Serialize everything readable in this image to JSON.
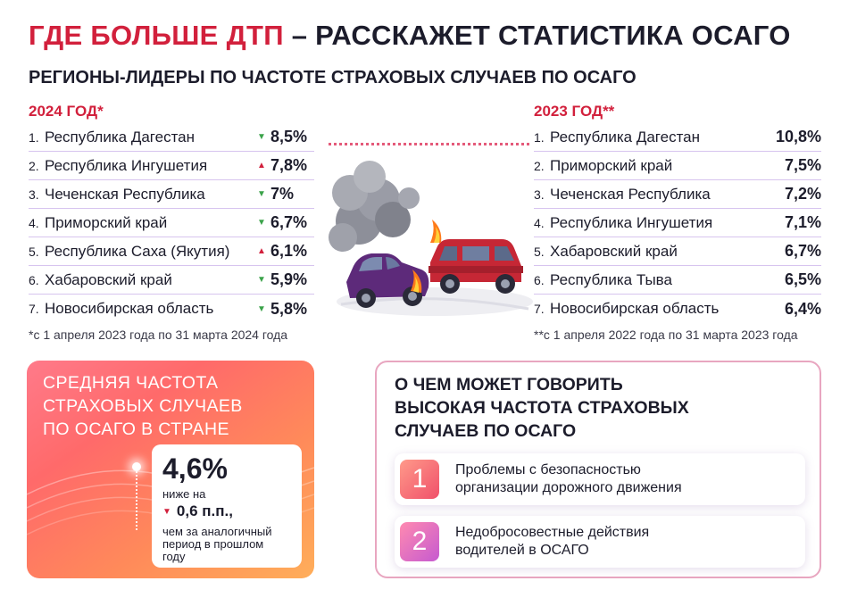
{
  "header": {
    "title_red": "ГДЕ БОЛЬШЕ ДТП",
    "title_dark": " – РАССКАЖЕТ СТАТИСТИКА ОСАГО",
    "subtitle": "РЕГИОНЫ-ЛИДЕРЫ ПО ЧАСТОТЕ СТРАХОВЫХ СЛУЧАЕВ ПО ОСАГО"
  },
  "left": {
    "heading": "2024 ГОД*",
    "rows": [
      {
        "num": "1.",
        "name": "Республика Дагестан",
        "trend": "down",
        "arrow": "▼",
        "value": "8,5%"
      },
      {
        "num": "2.",
        "name": "Республика Ингушетия",
        "trend": "up",
        "arrow": "▲",
        "value": "7,8%"
      },
      {
        "num": "3.",
        "name": "Чеченская Республика",
        "trend": "down",
        "arrow": "▼",
        "value": "7%"
      },
      {
        "num": "4.",
        "name": "Приморский край",
        "trend": "down",
        "arrow": "▼",
        "value": "6,7%"
      },
      {
        "num": "5.",
        "name": "Республика Саха (Якутия)",
        "trend": "up",
        "arrow": "▲",
        "value": "6,1%"
      },
      {
        "num": "6.",
        "name": "Хабаровский край",
        "trend": "down",
        "arrow": "▼",
        "value": "5,9%"
      },
      {
        "num": "7.",
        "name": "Новосибирская область",
        "trend": "down",
        "arrow": "▼",
        "value": "5,8%"
      }
    ],
    "footnote": "*с 1 апреля 2023 года по 31 марта 2024 года"
  },
  "right": {
    "heading": "2023 ГОД**",
    "rows": [
      {
        "num": "1.",
        "name": "Республика Дагестан",
        "value": "10,8%"
      },
      {
        "num": "2.",
        "name": "Приморский край",
        "value": "7,5%"
      },
      {
        "num": "3.",
        "name": "Чеченская Республика",
        "value": "7,2%"
      },
      {
        "num": "4.",
        "name": "Республика Ингушетия",
        "value": "7,1%"
      },
      {
        "num": "5.",
        "name": "Хабаровский край",
        "value": "6,7%"
      },
      {
        "num": "6.",
        "name": "Республика Тыва",
        "value": "6,5%"
      },
      {
        "num": "7.",
        "name": "Новосибирская область",
        "value": "6,4%"
      }
    ],
    "footnote": "**с 1 апреля 2022 года по 31 марта 2023 года"
  },
  "average_card": {
    "heading": "СРЕДНЯЯ ЧАСТОТА\nСТРАХОВЫХ СЛУЧАЕВ\nПО ОСАГО В СТРАНЕ",
    "value": "4,6%",
    "below_label": "ниже на",
    "arrow": "▼",
    "delta": "0,6 п.п.,",
    "description": "чем за аналогичный\nпериод в прошлом\nгоду"
  },
  "reasons_card": {
    "heading": "О ЧЕМ МОЖЕТ ГОВОРИТЬ\nВЫСОКАЯ ЧАСТОТА СТРАХОВЫХ\nСЛУЧАЕВ ПО ОСАГО",
    "items": [
      {
        "num": "1",
        "text": "Проблемы с безопасностью\nорганизации дорожного движения"
      },
      {
        "num": "2",
        "text": "Недобросовестные действия\nводителей в ОСАГО"
      }
    ]
  },
  "colors": {
    "accent_red": "#d2203c",
    "trend_down": "#3ba34a",
    "trend_up": "#d2203c",
    "divider": "#d7c4ef"
  },
  "icons": {
    "illustration": "car-crash-illustration",
    "trend_down": "triangle-down-icon",
    "trend_up": "triangle-up-icon"
  }
}
